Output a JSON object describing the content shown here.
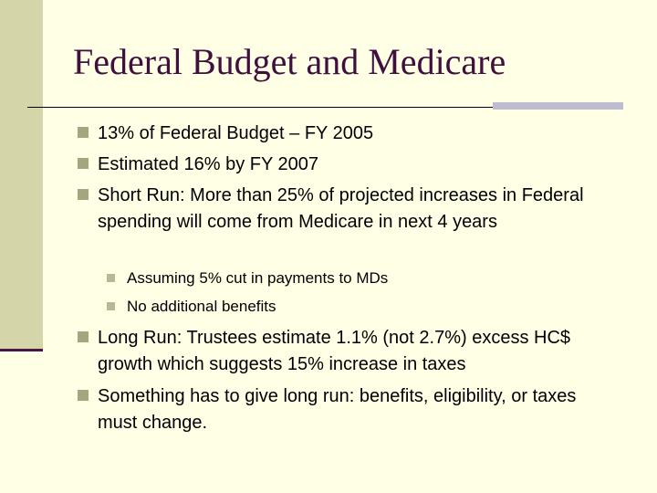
{
  "slide": {
    "title": "Federal Budget and Medicare",
    "bullets": [
      {
        "text": "13% of Federal Budget – FY 2005"
      },
      {
        "text": "Estimated 16% by FY 2007"
      },
      {
        "text": "Short Run: More than 25% of projected increases in Federal spending will come from Medicare in next 4 years"
      },
      {
        "text": "Long Run: Trustees estimate 1.1% (not 2.7%) excess HC$ growth which suggests 15% increase in taxes"
      },
      {
        "text": "Something has to give long run: benefits, eligibility, or taxes must change."
      }
    ],
    "sub_bullets": [
      {
        "text": "Assuming 5% cut in payments to MDs"
      },
      {
        "text": "No additional benefits"
      }
    ]
  }
}
